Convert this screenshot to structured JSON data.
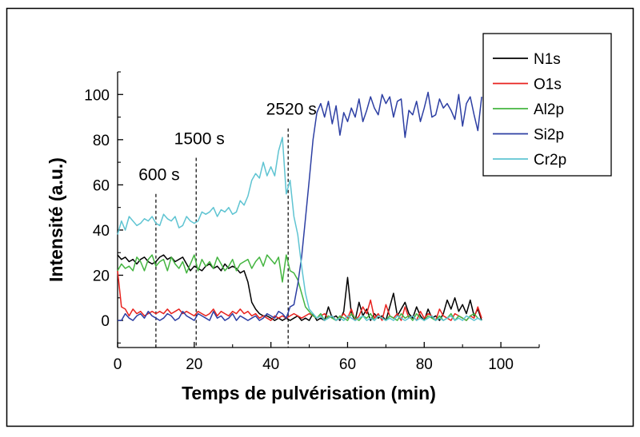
{
  "chart_data": {
    "type": "line",
    "title": "",
    "xlabel": "Temps de pulvérisation (min)",
    "ylabel": "Intensité (a.u.)",
    "xlim": [
      0,
      110
    ],
    "ylim": [
      -12,
      110
    ],
    "xticks": [
      0,
      20,
      40,
      60,
      80,
      100
    ],
    "yticks": [
      0,
      20,
      40,
      60,
      80,
      100
    ],
    "xtick_labels": [
      "0",
      "20",
      "40",
      "60",
      "80",
      "100"
    ],
    "ytick_labels": [
      "0",
      "20",
      "40",
      "60",
      "80",
      "100"
    ],
    "grid": false,
    "legend_position": "top-right",
    "annotations": [
      {
        "label": "600 s",
        "x": 10,
        "label_y": 62
      },
      {
        "label": "1500 s",
        "x": 20.5,
        "label_y": 78
      },
      {
        "label": "2520 s",
        "x": 44.5,
        "label_y": 91
      }
    ],
    "series": [
      {
        "name": "N1s",
        "color": "#000000",
        "x": [
          0,
          1,
          2,
          3,
          4,
          5,
          6,
          7,
          8,
          9,
          10,
          11,
          12,
          13,
          14,
          15,
          16,
          17,
          18,
          19,
          20,
          21,
          22,
          23,
          24,
          25,
          26,
          27,
          28,
          29,
          30,
          31,
          32,
          33,
          34,
          35,
          36,
          37,
          38,
          39,
          40,
          41,
          42,
          43,
          44,
          45,
          46,
          47,
          48,
          49,
          50,
          51,
          52,
          53,
          54,
          55,
          56,
          57,
          58,
          59,
          60,
          61,
          62,
          63,
          64,
          65,
          66,
          67,
          68,
          69,
          70,
          71,
          72,
          73,
          74,
          75,
          76,
          77,
          78,
          79,
          80,
          81,
          82,
          83,
          84,
          85,
          86,
          87,
          88,
          89,
          90,
          91,
          92,
          93,
          94,
          95
        ],
        "y": [
          29,
          27,
          28,
          26,
          27,
          25,
          27,
          28,
          26,
          25,
          26,
          28,
          29,
          27,
          28,
          26,
          27,
          28,
          25,
          22,
          24,
          23,
          22,
          24,
          25,
          23,
          24,
          22,
          25,
          23,
          24,
          23,
          21,
          22,
          17,
          8,
          5,
          3,
          2,
          2,
          1,
          0,
          1,
          0,
          1,
          0,
          1,
          2,
          0,
          1,
          0,
          3,
          0,
          1,
          0,
          6,
          1,
          2,
          0,
          4,
          19,
          3,
          0,
          8,
          2,
          5,
          0,
          3,
          1,
          2,
          0,
          6,
          12,
          2,
          5,
          8,
          3,
          1,
          6,
          2,
          0,
          5,
          1,
          2,
          0,
          3,
          9,
          5,
          10,
          4,
          7,
          3,
          9,
          2,
          5,
          0
        ]
      },
      {
        "name": "O1s",
        "color": "#e8231f",
        "x": [
          0,
          1,
          2,
          3,
          4,
          5,
          6,
          7,
          8,
          9,
          10,
          11,
          12,
          13,
          14,
          15,
          16,
          17,
          18,
          19,
          20,
          21,
          22,
          23,
          24,
          25,
          26,
          27,
          28,
          29,
          30,
          31,
          32,
          33,
          34,
          35,
          36,
          37,
          38,
          39,
          40,
          41,
          42,
          43,
          44,
          45,
          46,
          47,
          48,
          49,
          50,
          51,
          52,
          53,
          54,
          55,
          56,
          57,
          58,
          59,
          60,
          61,
          62,
          63,
          64,
          65,
          66,
          67,
          68,
          69,
          70,
          71,
          72,
          73,
          74,
          75,
          76,
          77,
          78,
          79,
          80,
          81,
          82,
          83,
          84,
          85,
          86,
          87,
          88,
          89,
          90,
          91,
          92,
          93,
          94,
          95
        ],
        "y": [
          22,
          6,
          5,
          2,
          5,
          3,
          4,
          2,
          3,
          4,
          3,
          4,
          3,
          5,
          3,
          4,
          5,
          3,
          4,
          3,
          2,
          4,
          3,
          2,
          3,
          5,
          2,
          4,
          3,
          2,
          4,
          3,
          5,
          3,
          4,
          2,
          3,
          1,
          2,
          1,
          0,
          2,
          1,
          2,
          1,
          2,
          3,
          2,
          1,
          2,
          3,
          2,
          1,
          2,
          3,
          1,
          2,
          0,
          1,
          3,
          1,
          5,
          0,
          2,
          6,
          3,
          9,
          1,
          3,
          0,
          7,
          2,
          1,
          3,
          0,
          6,
          1,
          2,
          0,
          4,
          1,
          3,
          2,
          0,
          5,
          2,
          1,
          0,
          3,
          2,
          1,
          0,
          2,
          1,
          6,
          1
        ]
      },
      {
        "name": "Al2p",
        "color": "#44b540",
        "x": [
          0,
          1,
          2,
          3,
          4,
          5,
          6,
          7,
          8,
          9,
          10,
          11,
          12,
          13,
          14,
          15,
          16,
          17,
          18,
          19,
          20,
          21,
          22,
          23,
          24,
          25,
          26,
          27,
          28,
          29,
          30,
          31,
          32,
          33,
          34,
          35,
          36,
          37,
          38,
          39,
          40,
          41,
          42,
          43,
          44,
          45,
          46,
          47,
          48,
          49,
          50,
          51,
          52,
          53,
          54,
          55,
          56,
          57,
          58,
          59,
          60,
          61,
          62,
          63,
          64,
          65,
          66,
          67,
          68,
          69,
          70,
          71,
          72,
          73,
          74,
          75,
          76,
          77,
          78,
          79,
          80,
          81,
          82,
          83,
          84,
          85,
          86,
          87,
          88,
          89,
          90,
          91,
          92,
          93,
          94,
          95
        ],
        "y": [
          22,
          25,
          23,
          24,
          22,
          28,
          26,
          22,
          27,
          29,
          24,
          26,
          27,
          22,
          28,
          25,
          23,
          26,
          21,
          25,
          29,
          22,
          27,
          24,
          26,
          23,
          28,
          25,
          22,
          24,
          27,
          22,
          25,
          26,
          27,
          23,
          26,
          28,
          24,
          29,
          27,
          25,
          28,
          17,
          29,
          22,
          21,
          18,
          12,
          6,
          4,
          2,
          1,
          3,
          0,
          2,
          1,
          0,
          2,
          1,
          0,
          3,
          1,
          0,
          2,
          1,
          3,
          0,
          2,
          1,
          0,
          2,
          1,
          0,
          3,
          1,
          2,
          0,
          3,
          1,
          0,
          2,
          1,
          0,
          2,
          0,
          1,
          3,
          0,
          2,
          1,
          0,
          2,
          3,
          1,
          0
        ]
      },
      {
        "name": "Si2p",
        "color": "#2d3fa3",
        "x": [
          0,
          1,
          2,
          3,
          4,
          5,
          6,
          7,
          8,
          9,
          10,
          11,
          12,
          13,
          14,
          15,
          16,
          17,
          18,
          19,
          20,
          21,
          22,
          23,
          24,
          25,
          26,
          27,
          28,
          29,
          30,
          31,
          32,
          33,
          34,
          35,
          36,
          37,
          38,
          39,
          40,
          41,
          42,
          43,
          44,
          45,
          46,
          47,
          48,
          49,
          50,
          51,
          52,
          53,
          54,
          55,
          56,
          57,
          58,
          59,
          60,
          61,
          62,
          63,
          64,
          65,
          66,
          67,
          68,
          69,
          70,
          71,
          72,
          73,
          74,
          75,
          76,
          77,
          78,
          79,
          80,
          81,
          82,
          83,
          84,
          85,
          86,
          87,
          88,
          89,
          90,
          91,
          92,
          93,
          94,
          95
        ],
        "y": [
          0,
          0,
          3,
          1,
          0,
          2,
          3,
          1,
          4,
          2,
          1,
          0,
          1,
          3,
          2,
          0,
          1,
          4,
          2,
          1,
          0,
          3,
          2,
          1,
          0,
          4,
          1,
          2,
          0,
          1,
          3,
          0,
          2,
          1,
          0,
          1,
          2,
          0,
          1,
          3,
          2,
          1,
          4,
          3,
          1,
          6,
          7,
          16,
          28,
          45,
          62,
          80,
          92,
          96,
          90,
          97,
          87,
          95,
          82,
          92,
          88,
          94,
          90,
          98,
          88,
          93,
          99,
          94,
          91,
          100,
          96,
          99,
          90,
          97,
          98,
          81,
          93,
          91,
          97,
          88,
          94,
          101,
          90,
          91,
          98,
          94,
          96,
          93,
          89,
          100,
          86,
          96,
          99,
          91,
          84,
          99
        ]
      },
      {
        "name": "Cr2p",
        "color": "#5fc4d2",
        "x": [
          0,
          1,
          2,
          3,
          4,
          5,
          6,
          7,
          8,
          9,
          10,
          11,
          12,
          13,
          14,
          15,
          16,
          17,
          18,
          19,
          20,
          21,
          22,
          23,
          24,
          25,
          26,
          27,
          28,
          29,
          30,
          31,
          32,
          33,
          34,
          35,
          36,
          37,
          38,
          39,
          40,
          41,
          42,
          43,
          44,
          45,
          46,
          47,
          48,
          49,
          50,
          51,
          52,
          53,
          54,
          55,
          56,
          57,
          58,
          59,
          60,
          61,
          62,
          63,
          64,
          65,
          66,
          67,
          68,
          69,
          70,
          71,
          72,
          73,
          74,
          75,
          76,
          77,
          78,
          79,
          80,
          81,
          82,
          83,
          84,
          85,
          86,
          87,
          88,
          89,
          90,
          91,
          92,
          93,
          94,
          95
        ],
        "y": [
          38,
          44,
          40,
          46,
          44,
          42,
          43,
          45,
          44,
          46,
          43,
          42,
          47,
          45,
          44,
          46,
          41,
          42,
          46,
          44,
          43,
          44,
          48,
          47,
          48,
          50,
          46,
          49,
          48,
          50,
          47,
          48,
          53,
          51,
          55,
          62,
          65,
          63,
          70,
          64,
          68,
          64,
          75,
          81,
          56,
          62,
          46,
          38,
          24,
          12,
          5,
          3,
          1,
          2,
          0,
          1,
          2,
          0,
          1,
          0,
          2,
          1,
          0,
          1,
          2,
          0,
          1,
          0,
          2,
          1,
          0,
          1,
          0,
          2,
          1,
          0,
          1,
          2,
          0,
          1,
          0,
          1,
          2,
          0,
          1,
          0,
          1,
          2,
          0,
          1,
          0,
          2,
          1,
          0,
          1,
          0
        ]
      }
    ]
  }
}
